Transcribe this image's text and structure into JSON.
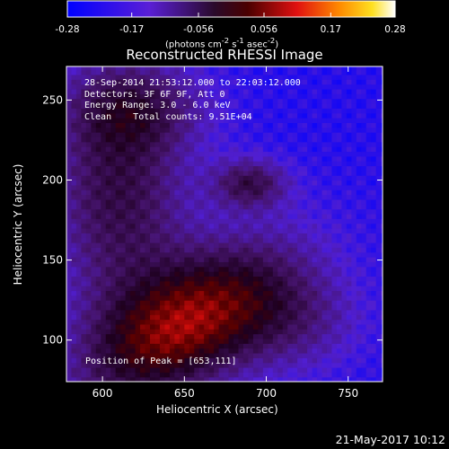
{
  "title": "Reconstructed RHESSI Image",
  "colorbar": {
    "ticks": [
      "-0.28",
      "-0.17",
      "-0.056",
      "0.056",
      "0.17",
      "0.28"
    ],
    "tick_values": [
      -0.28,
      -0.17,
      -0.056,
      0.056,
      0.17,
      0.28
    ],
    "range": [
      -0.28,
      0.28
    ],
    "unit": {
      "pre": "(photons cm",
      "e1": "-2",
      "mid1": " s",
      "e2": "-1",
      "mid2": " asec",
      "e3": "-2",
      "post": ")"
    }
  },
  "info_lines": [
    "28-Sep-2014 21:53:12.000 to 22:03:12.000",
    "Detectors: 3F 6F 9F, Att 0",
    "Energy Range: 3.0 - 6.0 keV",
    "Clean    Total counts: 9.51E+04"
  ],
  "peak_text": "Position of Peak = [653,111]",
  "footer_date": "21-May-2017 10:12",
  "colors": {
    "background": "#000000",
    "text": "#ffffff"
  },
  "chart_data": {
    "type": "heatmap",
    "xlabel": "Heliocentric X (arcsec)",
    "ylabel": "Heliocentric Y (arcsec)",
    "xlim": [
      578,
      771
    ],
    "ylim": [
      74,
      271
    ],
    "x_ticks": [
      600,
      650,
      700,
      750
    ],
    "y_ticks": [
      100,
      150,
      200,
      250
    ],
    "colormap": "blue-purple-red-orange-yellow-white",
    "peak": [
      653,
      111
    ],
    "sources": [
      {
        "x": 653,
        "y": 111,
        "sx": 50,
        "sy": 26,
        "angle": -0.55,
        "amp": 0.28
      },
      {
        "x": 610,
        "y": 195,
        "sx": 30,
        "sy": 55,
        "angle": 0.0,
        "amp": 0.16
      },
      {
        "x": 690,
        "y": 198,
        "sx": 16,
        "sy": 11,
        "angle": 0.0,
        "amp": 0.15
      },
      {
        "x": 620,
        "y": 245,
        "sx": 30,
        "sy": 18,
        "angle": 0.0,
        "amp": 0.1
      },
      {
        "x": 720,
        "y": 110,
        "sx": 28,
        "sy": 22,
        "angle": 0.0,
        "amp": 0.08
      }
    ],
    "background_level": -0.24
  }
}
